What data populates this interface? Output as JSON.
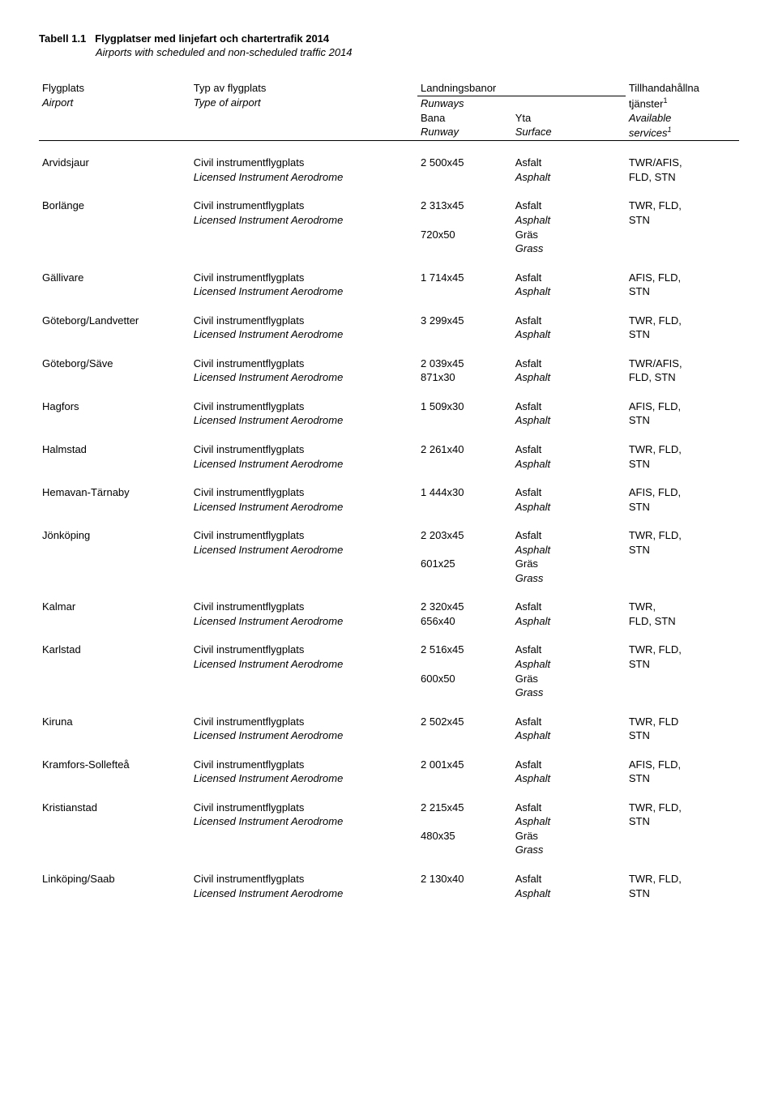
{
  "title": {
    "label": "Tabell 1.1",
    "sv": "Flygplatser med linjefart och chartertrafik 2014",
    "en": "Airports with scheduled and non-scheduled traffic 2014"
  },
  "headers": {
    "airport_sv": "Flygplats",
    "airport_en": "Airport",
    "type_sv": "Typ av flygplats",
    "type_en": "Type of airport",
    "runways_sv": "Landningsbanor",
    "runways_en": "Runways",
    "runway_sv": "Bana",
    "runway_en": "Runway",
    "surface_sv": "Yta",
    "surface_en": "Surface",
    "services_sv1": "Tillhandahållna",
    "services_sv2": "tjänster",
    "services_en1": "Available",
    "services_en2": "services",
    "footnote_mark": "1"
  },
  "type_labels": {
    "sv": "Civil instrumentflygplats",
    "en": "Licensed Instrument Aerodrome"
  },
  "surface": {
    "asfalt": "Asfalt",
    "asphalt": "Asphalt",
    "gras_sv": "Gräs",
    "gras_en": "Grass"
  },
  "airports": [
    {
      "name": "Arvidsjaur",
      "rows": [
        {
          "runway": "2 500x45",
          "surface_sv": "Asfalt",
          "surface_en": "Asphalt",
          "svc1": "TWR/AFIS,",
          "svc2": "FLD, STN"
        }
      ]
    },
    {
      "name": "Borlänge",
      "rows": [
        {
          "runway": "2 313x45",
          "surface_sv": "Asfalt",
          "surface_en": "Asphalt",
          "svc1": "TWR, FLD,",
          "svc2": "STN"
        },
        {
          "runway": "720x50",
          "surface_sv": "Gräs",
          "surface_en": "Grass"
        }
      ]
    },
    {
      "name": "Gällivare",
      "rows": [
        {
          "runway": "1 714x45",
          "surface_sv": "Asfalt",
          "surface_en": "Asphalt",
          "svc1": "AFIS, FLD,",
          "svc2": "STN"
        }
      ]
    },
    {
      "name": "Göteborg/Landvetter",
      "rows": [
        {
          "runway": "3 299x45",
          "surface_sv": "Asfalt",
          "surface_en": "Asphalt",
          "svc1": "TWR, FLD,",
          "svc2": "STN"
        }
      ]
    },
    {
      "name": "Göteborg/Säve",
      "rows": [
        {
          "runway": "2 039x45",
          "surface_sv": "Asfalt",
          "surface_en": "Asphalt",
          "svc1": "TWR/AFIS,",
          "svc2": "FLD, STN"
        },
        {
          "runway": "871x30"
        }
      ]
    },
    {
      "name": "Hagfors",
      "rows": [
        {
          "runway": "1 509x30",
          "surface_sv": "Asfalt",
          "surface_en": "Asphalt",
          "svc1": "AFIS, FLD,",
          "svc2": "STN"
        }
      ]
    },
    {
      "name": "Halmstad",
      "rows": [
        {
          "runway": "2 261x40",
          "surface_sv": "Asfalt",
          "surface_en": "Asphalt",
          "svc1": "TWR, FLD,",
          "svc2": "STN"
        }
      ]
    },
    {
      "name": "Hemavan-Tärnaby",
      "rows": [
        {
          "runway": "1 444x30",
          "surface_sv": "Asfalt",
          "surface_en": "Asphalt",
          "svc1": "AFIS, FLD,",
          "svc2": "STN"
        }
      ]
    },
    {
      "name": "Jönköping",
      "rows": [
        {
          "runway": "2 203x45",
          "surface_sv": "Asfalt",
          "surface_en": "Asphalt",
          "svc1": "TWR, FLD,",
          "svc2": "STN"
        },
        {
          "runway": "601x25",
          "surface_sv": "Gräs",
          "surface_en": "Grass"
        }
      ]
    },
    {
      "name": "Kalmar",
      "rows": [
        {
          "runway": "2 320x45",
          "surface_sv": "Asfalt",
          "surface_en": "Asphalt",
          "svc1": "TWR,",
          "svc2": "FLD, STN"
        },
        {
          "runway": "656x40"
        }
      ]
    },
    {
      "name": "Karlstad",
      "rows": [
        {
          "runway": "2 516x45",
          "surface_sv": "Asfalt",
          "surface_en": "Asphalt",
          "svc1": "TWR, FLD,",
          "svc2": "STN"
        },
        {
          "runway": "600x50",
          "surface_sv": "Gräs",
          "surface_en": "Grass"
        }
      ]
    },
    {
      "name": "Kiruna",
      "rows": [
        {
          "runway": "2 502x45",
          "surface_sv": "Asfalt",
          "surface_en": "Asphalt",
          "svc1": "TWR, FLD",
          "svc2": "STN"
        }
      ]
    },
    {
      "name": "Kramfors-Sollefteå",
      "rows": [
        {
          "runway": "2 001x45",
          "surface_sv": "Asfalt",
          "surface_en": "Asphalt",
          "svc1": "AFIS, FLD,",
          "svc2": "STN"
        }
      ]
    },
    {
      "name": "Kristianstad",
      "rows": [
        {
          "runway": "2 215x45",
          "surface_sv": "Asfalt",
          "surface_en": "Asphalt",
          "svc1": "TWR, FLD,",
          "svc2": "STN"
        },
        {
          "runway": "480x35",
          "surface_sv": "Gräs",
          "surface_en": "Grass"
        }
      ]
    },
    {
      "name": "Linköping/Saab",
      "rows": [
        {
          "runway": "2 130x40",
          "surface_sv": "Asfalt",
          "surface_en": "Asphalt",
          "svc1": "TWR, FLD,",
          "svc2": "STN"
        }
      ]
    }
  ]
}
